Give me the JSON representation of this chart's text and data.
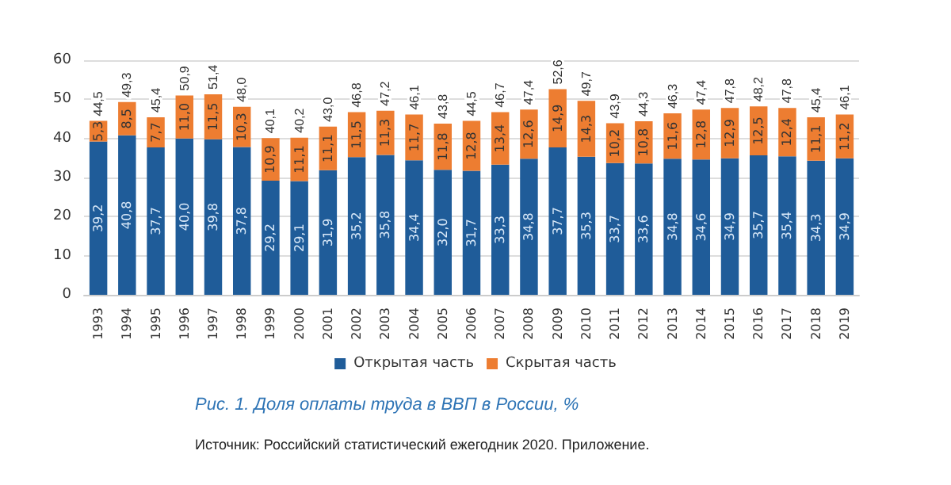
{
  "chart_data": {
    "type": "bar",
    "stacked": true,
    "title": "Рис. 1. Доля оплаты труда в ВВП в России, %",
    "annotations": [
      "Источник: Российский статистический ежегодник 2020. Приложение."
    ],
    "categories": [
      "1993",
      "1994",
      "1995",
      "1996",
      "1997",
      "1998",
      "1999",
      "2000",
      "2001",
      "2002",
      "2003",
      "2004",
      "2005",
      "2006",
      "2007",
      "2008",
      "2009",
      "2010",
      "2011",
      "2012",
      "2013",
      "2014",
      "2015",
      "2016",
      "2017",
      "2018",
      "2019"
    ],
    "series": [
      {
        "name": "Открытая часть",
        "color": "#1f5c99",
        "values": [
          39.2,
          40.8,
          37.7,
          40.0,
          39.8,
          37.8,
          29.2,
          29.1,
          31.9,
          35.2,
          35.8,
          34.4,
          32.0,
          31.7,
          33.3,
          34.8,
          37.7,
          35.3,
          33.7,
          33.6,
          34.8,
          34.6,
          34.9,
          35.7,
          35.4,
          34.3,
          34.9
        ],
        "value_labels": [
          "39,2",
          "40,8",
          "37,7",
          "40,0",
          "39,8",
          "37,8",
          "29,2",
          "29,1",
          "31,9",
          "35,2",
          "35,8",
          "34,4",
          "32,0",
          "31,7",
          "33,3",
          "34,8",
          "37,7",
          "35,3",
          "33,7",
          "33,6",
          "34,8",
          "34,6",
          "34,9",
          "35,7",
          "35,4",
          "34,3",
          "34,9"
        ]
      },
      {
        "name": "Скрытая часть",
        "color": "#ed7d31",
        "values": [
          5.3,
          8.5,
          7.7,
          11.0,
          11.5,
          10.3,
          10.9,
          11.1,
          11.1,
          11.5,
          11.3,
          11.7,
          11.8,
          12.8,
          13.4,
          12.6,
          14.9,
          14.3,
          10.2,
          10.8,
          11.6,
          12.8,
          12.9,
          12.5,
          12.4,
          11.1,
          11.2
        ],
        "value_labels": [
          "5,3",
          "8,5",
          "7,7",
          "11,0",
          "11,5",
          "10,3",
          "10,9",
          "11,1",
          "11,1",
          "11,5",
          "11,3",
          "11,7",
          "11,8",
          "12,8",
          "13,4",
          "12,6",
          "14,9",
          "14,3",
          "10,2",
          "10,8",
          "11,6",
          "12,8",
          "12,9",
          "12,5",
          "12,4",
          "11,1",
          "11,2"
        ]
      }
    ],
    "totals": [
      "44,5",
      "49,3",
      "45,4",
      "50,9",
      "51,4",
      "48,0",
      "40,1",
      "40,2",
      "43,0",
      "46,8",
      "47,2",
      "46,1",
      "43,8",
      "44,5",
      "46,7",
      "47,4",
      "52,6",
      "49,7",
      "43,9",
      "44,3",
      "46,3",
      "47,4",
      "47,8",
      "48,2",
      "47,8",
      "45,4",
      "46,1"
    ],
    "ylim": [
      0,
      60
    ],
    "yticks": [
      0,
      10,
      20,
      30,
      40,
      50,
      60
    ],
    "grid": "y",
    "legend": "bottom"
  }
}
